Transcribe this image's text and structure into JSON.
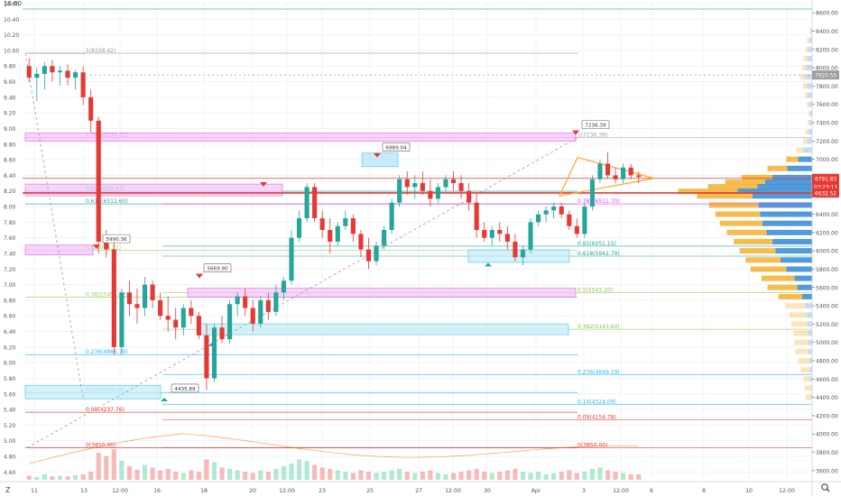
{
  "toolbar": {
    "zoom_icon": "magnifier-icon",
    "bottom_left_glyph": "Z",
    "top_left_glyph": "10.60"
  },
  "colors": {
    "up": "#26a69a",
    "up_light": "#9be3c5",
    "down": "#e53935",
    "down_light": "#f5a7a7",
    "fib_pink": "#e040fb",
    "fib_blue": "#29b6f6",
    "grid": "#f1f3f6",
    "triangle": "#ffa726",
    "vp_up": "#f4b63c",
    "vp_down": "#3f8fd6",
    "price_badge": "#e53935",
    "label_box": "#ffffff"
  },
  "chart_data": {
    "type": "candlestick",
    "left_axis": {
      "ylim": [
        4.5,
        10.6
      ],
      "ticks": [
        "10.60",
        "10.40",
        "10.20",
        "10.00",
        "9.80",
        "9.60",
        "9.40",
        "9.20",
        "9.00",
        "8.80",
        "8.60",
        "8.40",
        "8.20",
        "8.00",
        "7.80",
        "7.60",
        "7.40",
        "7.20",
        "7.00",
        "6.80",
        "6.60",
        "6.40",
        "6.20",
        "6.00",
        "5.80",
        "5.60",
        "5.40",
        "5.20",
        "5.00",
        "4.80",
        "4.60"
      ]
    },
    "right_axis": {
      "ylim": [
        3500,
        8700
      ],
      "ticks": [
        "8600.00",
        "8400.00",
        "8200.00",
        "8000.00",
        "7800.00",
        "7600.00",
        "7400.00",
        "7200.00",
        "7000.00",
        "6800.00",
        "6600.00",
        "6400.00",
        "6200.00",
        "6000.00",
        "5800.00",
        "5600.00",
        "5400.00",
        "5200.00",
        "5000.00",
        "4800.00",
        "4600.00",
        "4400.00",
        "4200.00",
        "4000.00",
        "3800.00",
        "3600.00"
      ]
    },
    "x_axis": {
      "ticks": [
        "11",
        "13",
        "12:00",
        "16",
        "18",
        "20",
        "12:00",
        "23",
        "25",
        "27",
        "12:00",
        "30",
        "Apr",
        "3",
        "12:00",
        "6",
        "8",
        "10",
        "12:00"
      ]
    },
    "price_badges": [
      {
        "value": "7920.53",
        "kind": "last"
      },
      {
        "value": "6791.83",
        "kind": "red"
      },
      {
        "value": "03:23:11",
        "kind": "red"
      },
      {
        "value": "6632.52",
        "kind": "red"
      }
    ],
    "fib_left": [
      {
        "label": "1(8158.42)",
        "value": 8158.42
      },
      {
        "label": "0.786(7236.42)",
        "value": 7236.42
      },
      {
        "label": "0.65(6650.47)",
        "value": 6650.47
      },
      {
        "label": "0.618(6512.60)",
        "value": 6512.6
      },
      {
        "label": "0.5(6004.21)",
        "value": 6004.21
      },
      {
        "label": "0.382(5495.82)",
        "value": 5495.82
      },
      {
        "label": "0.236(4866.79)",
        "value": 4866.79
      },
      {
        "label": "0.14(4453.18)",
        "value": 4453.18
      },
      {
        "label": "0.09(4237.76)",
        "value": 4237.76
      },
      {
        "label": "0(3850.00)",
        "value": 3850.0
      }
    ],
    "fib_right": [
      {
        "label": "1(7236.39)",
        "value": 7236.39
      },
      {
        "label": "0.786(6511.70)",
        "value": 6511.7
      },
      {
        "label": "0.65(6051.15)",
        "value": 6051.15
      },
      {
        "label": "0.618(5942.79)",
        "value": 5942.79
      },
      {
        "label": "0.5(5543.20)",
        "value": 5543.2
      },
      {
        "label": "0.382(5143.60)",
        "value": 5143.6
      },
      {
        "label": "0.236(4649.19)",
        "value": 4649.19
      },
      {
        "label": "0.14(4324.09)",
        "value": 4324.09
      },
      {
        "label": "0.09(4154.78)",
        "value": 4154.78
      },
      {
        "label": "0(3850.00)",
        "value": 3850.0
      }
    ],
    "callouts": [
      {
        "label": "7236.39",
        "value": 7236.39
      },
      {
        "label": "6989.04",
        "value": 6989.04
      },
      {
        "label": "5990.36",
        "value": 5990.36
      },
      {
        "label": "5669.90",
        "value": 5669.9
      },
      {
        "label": "4435.89",
        "value": 4435.89
      }
    ],
    "candles": [
      [
        9.8,
        9.9,
        9.6,
        9.65
      ],
      [
        9.65,
        9.78,
        9.35,
        9.7
      ],
      [
        9.7,
        9.85,
        9.5,
        9.8
      ],
      [
        9.8,
        9.88,
        9.6,
        9.72
      ],
      [
        9.72,
        9.8,
        9.55,
        9.74
      ],
      [
        9.74,
        9.82,
        9.55,
        9.65
      ],
      [
        9.65,
        9.75,
        9.5,
        9.72
      ],
      [
        9.72,
        9.8,
        9.3,
        9.4
      ],
      [
        9.4,
        9.5,
        8.95,
        9.1
      ],
      [
        9.1,
        9.15,
        7.4,
        7.55
      ],
      [
        7.55,
        7.7,
        7.35,
        7.45
      ],
      [
        7.45,
        7.6,
        6.1,
        6.2
      ],
      [
        6.2,
        6.95,
        6.1,
        6.9
      ],
      [
        6.9,
        7.05,
        6.6,
        6.75
      ],
      [
        6.75,
        6.95,
        6.5,
        6.7
      ],
      [
        6.7,
        7.1,
        6.6,
        7.0
      ],
      [
        7.0,
        7.05,
        6.7,
        6.8
      ],
      [
        6.8,
        6.9,
        6.55,
        6.6
      ],
      [
        6.6,
        6.85,
        6.4,
        6.55
      ],
      [
        6.55,
        6.7,
        6.3,
        6.45
      ],
      [
        6.45,
        6.75,
        6.35,
        6.7
      ],
      [
        6.7,
        6.8,
        6.5,
        6.6
      ],
      [
        6.6,
        6.65,
        6.3,
        6.35
      ],
      [
        6.35,
        6.5,
        5.65,
        5.8
      ],
      [
        5.8,
        6.5,
        5.75,
        6.45
      ],
      [
        6.45,
        6.6,
        6.25,
        6.3
      ],
      [
        6.3,
        6.8,
        6.25,
        6.75
      ],
      [
        6.75,
        6.9,
        6.6,
        6.85
      ],
      [
        6.85,
        6.95,
        6.6,
        6.7
      ],
      [
        6.7,
        6.8,
        6.4,
        6.5
      ],
      [
        6.5,
        6.85,
        6.45,
        6.8
      ],
      [
        6.8,
        6.9,
        6.55,
        6.65
      ],
      [
        6.65,
        7.0,
        6.6,
        6.9
      ],
      [
        6.9,
        7.1,
        6.8,
        7.05
      ],
      [
        7.05,
        7.7,
        7.0,
        7.6
      ],
      [
        7.6,
        7.95,
        7.55,
        7.85
      ],
      [
        7.85,
        8.3,
        7.8,
        8.25
      ],
      [
        8.25,
        8.3,
        7.8,
        7.85
      ],
      [
        7.85,
        7.95,
        7.6,
        7.7
      ],
      [
        7.7,
        7.85,
        7.4,
        7.55
      ],
      [
        7.55,
        7.8,
        7.5,
        7.75
      ],
      [
        7.75,
        7.95,
        7.7,
        7.85
      ],
      [
        7.85,
        7.9,
        7.55,
        7.65
      ],
      [
        7.65,
        7.7,
        7.35,
        7.45
      ],
      [
        7.45,
        7.6,
        7.2,
        7.3
      ],
      [
        7.3,
        7.55,
        7.25,
        7.5
      ],
      [
        7.5,
        7.75,
        7.45,
        7.7
      ],
      [
        7.7,
        8.1,
        7.65,
        8.05
      ],
      [
        8.05,
        8.4,
        8.0,
        8.35
      ],
      [
        8.35,
        8.45,
        8.15,
        8.25
      ],
      [
        8.25,
        8.4,
        8.1,
        8.3
      ],
      [
        8.3,
        8.45,
        8.15,
        8.2
      ],
      [
        8.2,
        8.35,
        8.0,
        8.1
      ],
      [
        8.1,
        8.3,
        8.05,
        8.25
      ],
      [
        8.25,
        8.4,
        8.2,
        8.35
      ],
      [
        8.35,
        8.45,
        8.2,
        8.3
      ],
      [
        8.3,
        8.4,
        8.1,
        8.2
      ],
      [
        8.2,
        8.3,
        7.95,
        8.05
      ],
      [
        8.05,
        8.15,
        7.6,
        7.7
      ],
      [
        7.7,
        7.8,
        7.55,
        7.6
      ],
      [
        7.6,
        7.75,
        7.5,
        7.7
      ],
      [
        7.7,
        7.8,
        7.55,
        7.65
      ],
      [
        7.65,
        7.75,
        7.45,
        7.55
      ],
      [
        7.55,
        7.65,
        7.3,
        7.35
      ],
      [
        7.35,
        7.5,
        7.25,
        7.45
      ],
      [
        7.45,
        7.85,
        7.4,
        7.8
      ],
      [
        7.8,
        7.95,
        7.75,
        7.9
      ],
      [
        7.9,
        8.0,
        7.8,
        7.95
      ],
      [
        7.95,
        8.05,
        7.85,
        8.0
      ],
      [
        8.0,
        8.05,
        7.85,
        7.9
      ],
      [
        7.9,
        7.95,
        7.7,
        7.75
      ],
      [
        7.75,
        7.85,
        7.6,
        7.65
      ],
      [
        7.65,
        8.05,
        7.6,
        8.0
      ],
      [
        8.0,
        8.4,
        7.95,
        8.35
      ],
      [
        8.35,
        8.6,
        8.3,
        8.55
      ],
      [
        8.55,
        8.7,
        8.35,
        8.4
      ],
      [
        8.4,
        8.5,
        8.3,
        8.35
      ],
      [
        8.35,
        8.55,
        8.3,
        8.5
      ],
      [
        8.5,
        8.55,
        8.35,
        8.4
      ],
      [
        8.4,
        8.45,
        8.3,
        8.38
      ]
    ],
    "volume_profile": [
      [
        8400,
        2,
        3
      ],
      [
        8300,
        4,
        6
      ],
      [
        8200,
        5,
        8
      ],
      [
        8100,
        7,
        10
      ],
      [
        8000,
        8,
        12
      ],
      [
        7900,
        10,
        14
      ],
      [
        7800,
        8,
        10
      ],
      [
        7700,
        6,
        8
      ],
      [
        7600,
        5,
        6
      ],
      [
        7500,
        3,
        4
      ],
      [
        7400,
        4,
        5
      ],
      [
        7300,
        6,
        7
      ],
      [
        7200,
        8,
        10
      ],
      [
        7100,
        14,
        18
      ],
      [
        7000,
        24,
        28
      ],
      [
        6900,
        40,
        50
      ],
      [
        6800,
        62,
        80
      ],
      [
        6750,
        80,
        95
      ],
      [
        6700,
        100,
        110
      ],
      [
        6650,
        120,
        150
      ],
      [
        6600,
        112,
        120
      ],
      [
        6500,
        100,
        108
      ],
      [
        6400,
        90,
        105
      ],
      [
        6300,
        86,
        100
      ],
      [
        6200,
        80,
        92
      ],
      [
        6100,
        78,
        80
      ],
      [
        6000,
        72,
        74
      ],
      [
        5900,
        70,
        64
      ],
      [
        5800,
        72,
        52
      ],
      [
        5700,
        66,
        36
      ],
      [
        5600,
        60,
        30
      ],
      [
        5500,
        48,
        20
      ],
      [
        5400,
        40,
        14
      ],
      [
        5300,
        36,
        10
      ],
      [
        5200,
        32,
        10
      ],
      [
        5100,
        30,
        8
      ],
      [
        5000,
        28,
        8
      ],
      [
        4900,
        26,
        8
      ],
      [
        4800,
        22,
        6
      ],
      [
        4700,
        18,
        5
      ],
      [
        4600,
        14,
        4
      ],
      [
        4500,
        12,
        3
      ],
      [
        4400,
        10,
        3
      ]
    ],
    "volume_bars": [
      6,
      4,
      8,
      5,
      6,
      5,
      7,
      8,
      12,
      40,
      35,
      45,
      28,
      20,
      15,
      22,
      18,
      14,
      16,
      12,
      10,
      14,
      12,
      30,
      26,
      18,
      16,
      14,
      12,
      10,
      14,
      12,
      16,
      20,
      24,
      30,
      28,
      22,
      18,
      16,
      14,
      12,
      10,
      14,
      12,
      10,
      12,
      14,
      16,
      12,
      10,
      12,
      14,
      10,
      8,
      10,
      12,
      14,
      16,
      12,
      10,
      12,
      14,
      16,
      12,
      10,
      12,
      8,
      10,
      12,
      14,
      10,
      12,
      16,
      18,
      14,
      12,
      10,
      8,
      8
    ]
  }
}
